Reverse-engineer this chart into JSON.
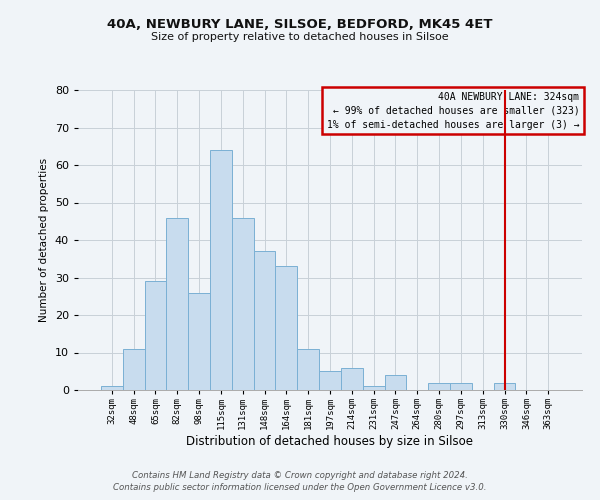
{
  "title": "40A, NEWBURY LANE, SILSOE, BEDFORD, MK45 4ET",
  "subtitle": "Size of property relative to detached houses in Silsoe",
  "xlabel": "Distribution of detached houses by size in Silsoe",
  "ylabel": "Number of detached properties",
  "bar_labels": [
    "32sqm",
    "48sqm",
    "65sqm",
    "82sqm",
    "98sqm",
    "115sqm",
    "131sqm",
    "148sqm",
    "164sqm",
    "181sqm",
    "197sqm",
    "214sqm",
    "231sqm",
    "247sqm",
    "264sqm",
    "280sqm",
    "297sqm",
    "313sqm",
    "330sqm",
    "346sqm",
    "363sqm"
  ],
  "bar_heights": [
    1,
    11,
    29,
    46,
    26,
    64,
    46,
    37,
    33,
    11,
    5,
    6,
    1,
    4,
    0,
    2,
    2,
    0,
    2,
    0,
    0
  ],
  "bar_color": "#c8dcee",
  "bar_edge_color": "#7ab0d4",
  "ylim": [
    0,
    80
  ],
  "yticks": [
    0,
    10,
    20,
    30,
    40,
    50,
    60,
    70,
    80
  ],
  "vline_x": 18.0,
  "vline_color": "#cc0000",
  "legend_title": "40A NEWBURY LANE: 324sqm",
  "legend_line1": "← 99% of detached houses are smaller (323)",
  "legend_line2": "1% of semi-detached houses are larger (3) →",
  "footer_line1": "Contains HM Land Registry data © Crown copyright and database right 2024.",
  "footer_line2": "Contains public sector information licensed under the Open Government Licence v3.0.",
  "bg_color": "#f0f4f8",
  "grid_color": "#c8d0d8"
}
